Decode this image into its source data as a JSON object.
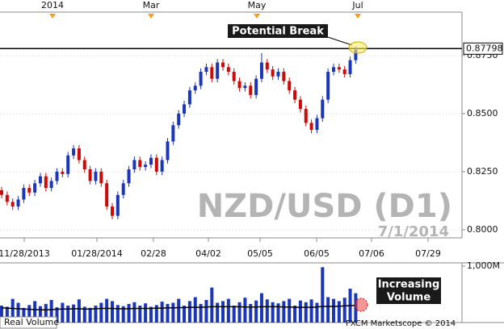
{
  "chart_data": {
    "type": "candlestick",
    "title": "NZD/USD (D1)",
    "subtitle": "7/1/2014",
    "up_color": "#1c36b8",
    "down_color": "#cc0a0a",
    "open": [
      0.817,
      0.815,
      0.812,
      0.81,
      0.813,
      0.818,
      0.816,
      0.82,
      0.823,
      0.818,
      0.821,
      0.825,
      0.824,
      0.832,
      0.835,
      0.83,
      0.826,
      0.821,
      0.825,
      0.82,
      0.81,
      0.806,
      0.815,
      0.82,
      0.826,
      0.83,
      0.827,
      0.828,
      0.831,
      0.825,
      0.83,
      0.838,
      0.845,
      0.85,
      0.854,
      0.86,
      0.862,
      0.868,
      0.87,
      0.865,
      0.872,
      0.87,
      0.868,
      0.864,
      0.861,
      0.862,
      0.858,
      0.865,
      0.872,
      0.869,
      0.866,
      0.868,
      0.864,
      0.86,
      0.856,
      0.852,
      0.846,
      0.843,
      0.848,
      0.856,
      0.868,
      0.87,
      0.869,
      0.867,
      0.873
    ],
    "high": [
      0.8185,
      0.8165,
      0.8135,
      0.8145,
      0.8195,
      0.8195,
      0.8215,
      0.8245,
      0.8245,
      0.8225,
      0.8265,
      0.8265,
      0.8335,
      0.8365,
      0.8365,
      0.8315,
      0.8275,
      0.8265,
      0.8265,
      0.8215,
      0.8115,
      0.8165,
      0.8215,
      0.8275,
      0.8315,
      0.8315,
      0.8295,
      0.8325,
      0.8325,
      0.8315,
      0.8395,
      0.8465,
      0.8515,
      0.8555,
      0.8615,
      0.8635,
      0.8695,
      0.8715,
      0.8715,
      0.8735,
      0.8735,
      0.8715,
      0.8695,
      0.8655,
      0.8635,
      0.8635,
      0.8665,
      0.876,
      0.8735,
      0.8705,
      0.8695,
      0.8695,
      0.8655,
      0.8615,
      0.8575,
      0.8535,
      0.8475,
      0.8495,
      0.8575,
      0.8695,
      0.8715,
      0.8715,
      0.8705,
      0.8745,
      0.879
    ],
    "low": [
      0.8135,
      0.8105,
      0.8085,
      0.8085,
      0.8115,
      0.8145,
      0.8145,
      0.8185,
      0.8165,
      0.8165,
      0.8195,
      0.8225,
      0.8225,
      0.8305,
      0.8285,
      0.8245,
      0.8195,
      0.8195,
      0.8185,
      0.8085,
      0.8045,
      0.8045,
      0.8135,
      0.8185,
      0.8245,
      0.8255,
      0.8255,
      0.8265,
      0.8235,
      0.8235,
      0.8285,
      0.8365,
      0.8435,
      0.8485,
      0.8525,
      0.8585,
      0.8605,
      0.8665,
      0.8635,
      0.8635,
      0.8685,
      0.8665,
      0.8625,
      0.8595,
      0.8595,
      0.8565,
      0.8565,
      0.8635,
      0.8675,
      0.8645,
      0.8645,
      0.8625,
      0.8585,
      0.8545,
      0.8505,
      0.8445,
      0.8415,
      0.8415,
      0.8465,
      0.8545,
      0.8665,
      0.8675,
      0.8655,
      0.8655,
      0.8715
    ],
    "close": [
      0.815,
      0.812,
      0.81,
      0.813,
      0.818,
      0.816,
      0.82,
      0.823,
      0.818,
      0.821,
      0.825,
      0.824,
      0.832,
      0.835,
      0.83,
      0.826,
      0.821,
      0.825,
      0.82,
      0.81,
      0.806,
      0.815,
      0.82,
      0.826,
      0.83,
      0.827,
      0.828,
      0.831,
      0.825,
      0.83,
      0.838,
      0.845,
      0.85,
      0.854,
      0.86,
      0.862,
      0.868,
      0.87,
      0.865,
      0.872,
      0.87,
      0.868,
      0.864,
      0.861,
      0.862,
      0.858,
      0.865,
      0.872,
      0.869,
      0.866,
      0.868,
      0.864,
      0.86,
      0.856,
      0.852,
      0.846,
      0.843,
      0.848,
      0.856,
      0.868,
      0.87,
      0.869,
      0.867,
      0.873,
      0.8775
    ],
    "ylim": [
      0.7965,
      0.8937
    ],
    "yticks": [
      {
        "value": 0.8,
        "label": "0.8000"
      },
      {
        "value": 0.825,
        "label": "0.8250"
      },
      {
        "value": 0.85,
        "label": "0.8500"
      },
      {
        "value": 0.875,
        "label": "0.8750"
      }
    ],
    "grid": true,
    "level": 0.87798,
    "x_labels": [
      "11/28/2013",
      "01/28/2014",
      "02/28",
      "04/02",
      "05/05",
      "06/05",
      "07/06",
      "07/29"
    ],
    "top_labels": [
      "2014",
      "Mar",
      "May",
      "Jul"
    ],
    "annotation": "Potential Break",
    "volume": {
      "name": "Real Volume",
      "color": "#1c36b8",
      "ma_color": "#000000",
      "values": [
        300,
        280,
        420,
        350,
        260,
        310,
        380,
        290,
        330,
        400,
        270,
        350,
        300,
        320,
        410,
        280,
        260,
        300,
        350,
        420,
        380,
        310,
        290,
        330,
        360,
        300,
        340,
        280,
        310,
        370,
        330,
        350,
        420,
        300,
        380,
        450,
        330,
        400,
        620,
        350,
        380,
        420,
        300,
        360,
        440,
        330,
        390,
        520,
        410,
        360,
        340,
        380,
        420,
        300,
        390,
        360,
        410,
        350,
        980,
        450,
        420,
        380,
        440,
        600,
        520
      ],
      "ma": [
        260,
        255,
        250,
        245,
        240,
        235,
        230,
        225,
        225,
        230,
        235,
        240,
        240,
        245,
        245,
        240,
        240,
        245,
        250,
        250,
        250,
        245,
        245,
        245,
        250,
        250,
        250,
        250,
        255,
        255,
        260,
        260,
        265,
        265,
        270,
        270,
        270,
        275,
        280,
        280,
        280,
        280,
        280,
        280,
        275,
        275,
        275,
        280,
        280,
        280,
        280,
        275,
        275,
        270,
        270,
        270,
        270,
        275,
        285,
        285,
        285,
        290,
        295,
        300,
        305
      ],
      "ylim": [
        0,
        1000
      ],
      "yticks": [
        {
          "value": 1000,
          "label": "1,000M"
        }
      ],
      "note": [
        "Increasing",
        "Volume"
      ]
    },
    "footer": "FXCM Marketscope © 2014"
  }
}
